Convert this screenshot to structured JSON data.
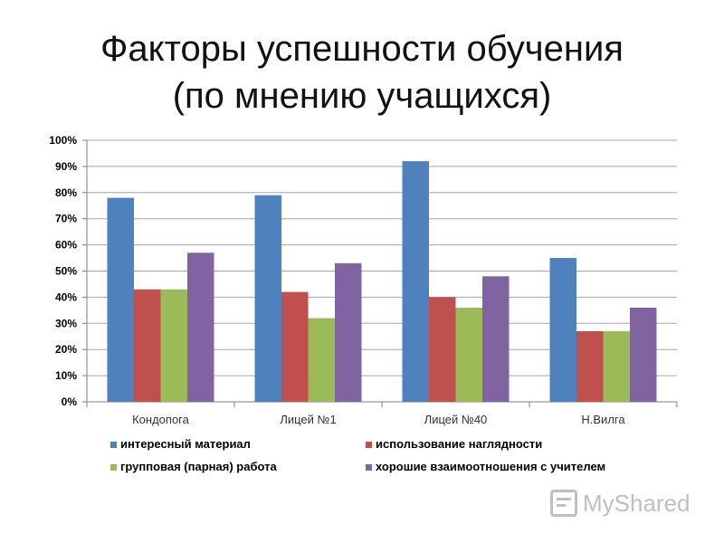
{
  "page": {
    "title_line1": "Факторы успешности обучения",
    "title_line2": "(по мнению учащихся)",
    "watermark_text": "MyShared"
  },
  "chart_data": {
    "type": "bar",
    "title": "",
    "xlabel": "",
    "ylabel": "",
    "ylim": [
      0,
      100
    ],
    "y_unit": "%",
    "yticks": [
      "0%",
      "10%",
      "20%",
      "30%",
      "40%",
      "50%",
      "60%",
      "70%",
      "80%",
      "90%",
      "100%"
    ],
    "grid": true,
    "legend_position": "bottom",
    "categories": [
      "Кондопога",
      "Лицей №1",
      "Лицей №40",
      "Н.Вилга"
    ],
    "series": [
      {
        "name": "интересный материал",
        "color": "#4F81BD",
        "values": [
          78,
          79,
          92,
          55
        ]
      },
      {
        "name": "использование наглядности",
        "color": "#C0504D",
        "values": [
          43,
          42,
          40,
          27
        ]
      },
      {
        "name": "групповая (парная) работа",
        "color": "#9BBB59",
        "values": [
          43,
          32,
          36,
          27
        ]
      },
      {
        "name": "хорошие взаимоотношения с учителем",
        "color": "#8064A2",
        "values": [
          57,
          53,
          48,
          36
        ]
      }
    ]
  }
}
